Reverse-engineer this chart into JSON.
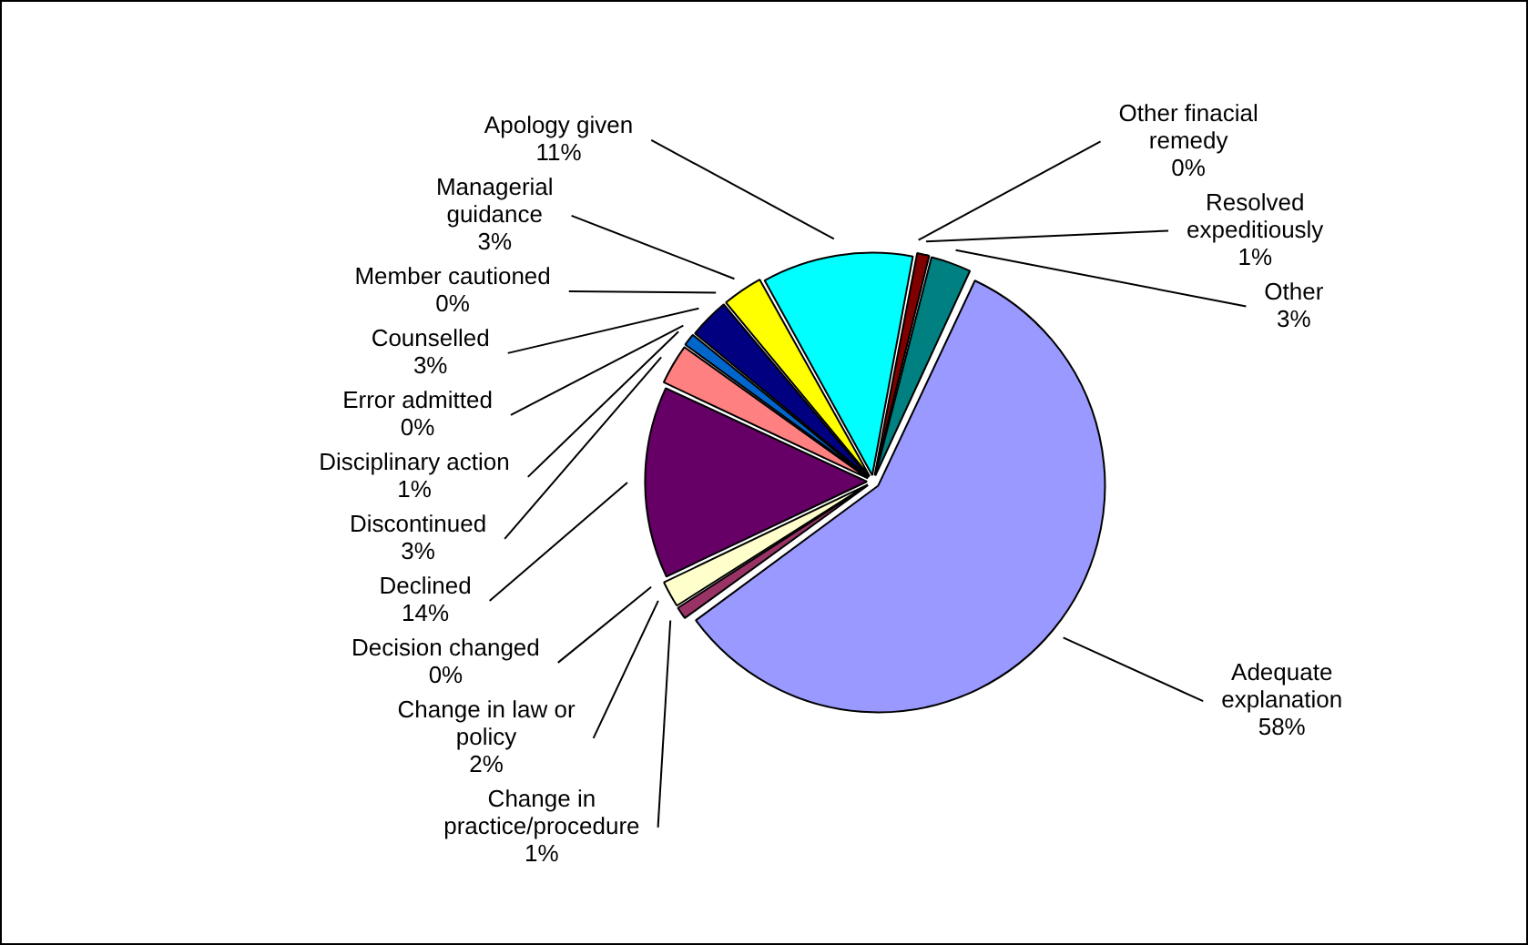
{
  "chart_data": {
    "type": "pie",
    "categories": [
      "Adequate explanation",
      "Change in practice/procedure",
      "Change in law or policy",
      "Decision changed",
      "Declined",
      "Discontinued",
      "Disciplinary action",
      "Error admitted",
      "Counselled",
      "Member cautioned",
      "Managerial guidance",
      "Apology given",
      "Other finacial remedy",
      "Resolved expeditiously",
      "Other"
    ],
    "values": [
      58,
      1,
      2,
      0,
      14,
      3,
      1,
      0,
      3,
      0,
      3,
      11,
      0,
      1,
      3
    ],
    "value_labels": [
      "58%",
      "1%",
      "2%",
      "0%",
      "14%",
      "3%",
      "1%",
      "0%",
      "3%",
      "0%",
      "3%",
      "11%",
      "0%",
      "1%",
      "3%"
    ],
    "colors": [
      "#9999ff",
      "#993366",
      "#ffffcc",
      "#ccffff",
      "#660066",
      "#ff8080",
      "#0066cc",
      "#ccccff",
      "#000080",
      "#ff00ff",
      "#ffff00",
      "#00ffff",
      "#800080",
      "#800000",
      "#008080"
    ],
    "legend": false
  }
}
